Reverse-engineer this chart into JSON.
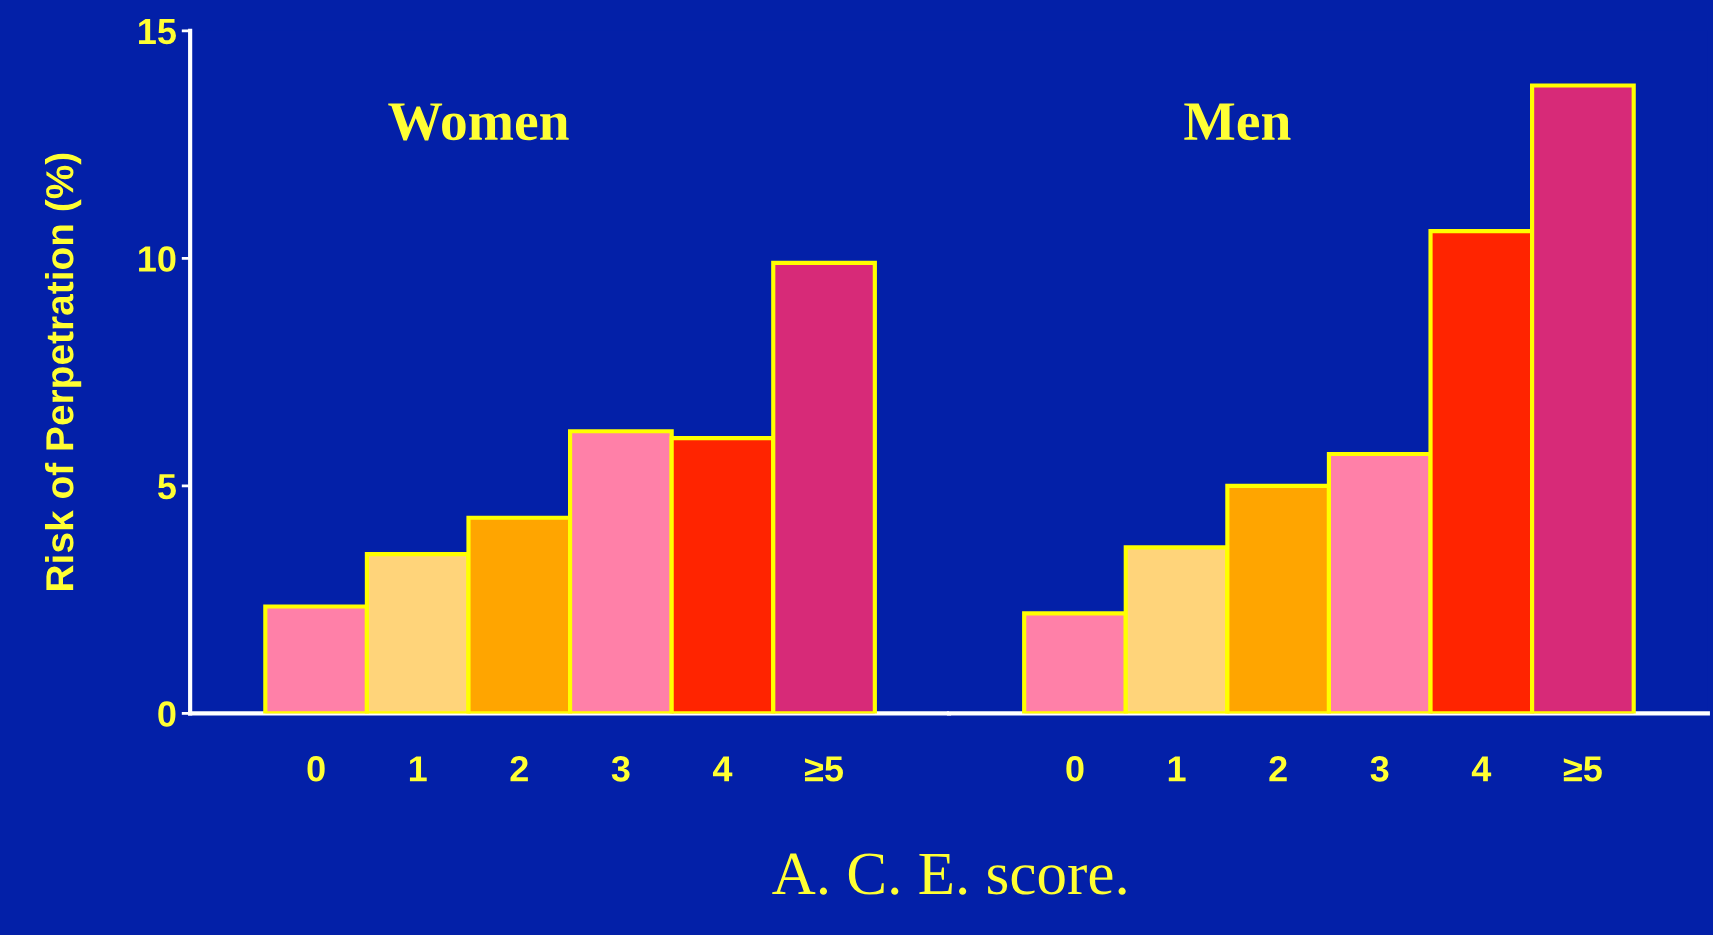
{
  "chart_data": [
    {
      "type": "bar",
      "title": "Women",
      "ylabel": "Risk of Perpetration (%)",
      "xlabel": "A. C. E. score.",
      "categories": [
        "0",
        "1",
        "2",
        "3",
        "4",
        "≥5"
      ],
      "values": [
        2.35,
        3.5,
        4.3,
        6.2,
        6.05,
        9.9
      ],
      "colors": [
        "#ff80a8",
        "#ffd47a",
        "#ffa500",
        "#ff80a8",
        "#ff2400",
        "#d72a78"
      ],
      "ylim": [
        0,
        15
      ],
      "yticks": [
        0,
        5,
        10,
        15
      ],
      "grid": false,
      "legend": false
    },
    {
      "type": "bar",
      "title": "Men",
      "categories": [
        "0",
        "1",
        "2",
        "3",
        "4",
        "≥5"
      ],
      "values": [
        2.2,
        3.65,
        5.0,
        5.7,
        10.6,
        13.8
      ],
      "colors": [
        "#ff80a8",
        "#ffd47a",
        "#ffa500",
        "#ff80a8",
        "#ff2400",
        "#d72a78"
      ],
      "ylim": [
        0,
        15
      ],
      "yticks": [
        0,
        5,
        10,
        15
      ],
      "tick_labels": "x",
      "grid": false,
      "legend": false
    }
  ]
}
